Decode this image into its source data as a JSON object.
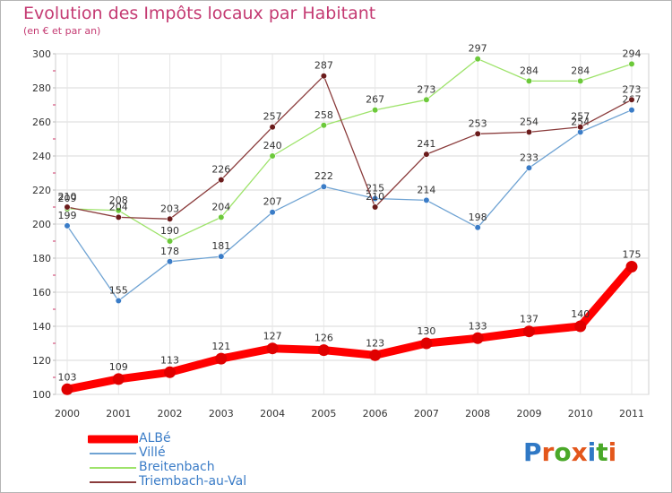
{
  "header": {
    "title": "Evolution des Impôts locaux par Habitant",
    "subtitle": "(en € et par an)"
  },
  "brand": {
    "letters": [
      "P",
      "r",
      "o",
      "x",
      "i",
      "t",
      "i"
    ],
    "colors": [
      "#2f78c5",
      "#e3571c",
      "#4aa829",
      "#e3571c",
      "#2f78c5",
      "#4aa829",
      "#e3571c"
    ]
  },
  "chart_data": {
    "type": "line",
    "title": "Evolution des Impôts locaux par Habitant",
    "subtitle": "(en € et par an)",
    "xlabel": "",
    "ylabel": "",
    "x": [
      "2000",
      "2001",
      "2002",
      "2003",
      "2004",
      "2005",
      "2006",
      "2007",
      "2008",
      "2009",
      "2010",
      "2011"
    ],
    "ylim": [
      100,
      300
    ],
    "yticks": [
      "100",
      "120",
      "140",
      "160",
      "180",
      "200",
      "220",
      "240",
      "260",
      "280",
      "300"
    ],
    "grid": true,
    "legend_position": "bottom-left",
    "series": [
      {
        "name": "ALBé",
        "color": "#ff0000",
        "marker_color": "#e00000",
        "values": [
          103,
          109,
          113,
          121,
          127,
          126,
          123,
          130,
          133,
          137,
          140,
          175
        ],
        "labels": [
          "103",
          "109",
          "113",
          "121",
          "127",
          "126",
          "123",
          "130",
          "133",
          "137",
          "140",
          "175"
        ]
      },
      {
        "name": "Villé",
        "color": "#6fa3d3",
        "marker_color": "#3a7cc7",
        "values": [
          199,
          155,
          178,
          181,
          207,
          222,
          215,
          214,
          198,
          233,
          254,
          267
        ],
        "labels": [
          "199",
          "155",
          "178",
          "181",
          "207",
          "222",
          "215",
          "214",
          "198",
          "233",
          "254",
          "267"
        ]
      },
      {
        "name": "Breitenbach",
        "color": "#9ee36b",
        "marker_color": "#6cc93a",
        "values": [
          209,
          208,
          190,
          204,
          240,
          258,
          267,
          273,
          297,
          284,
          284,
          294
        ],
        "labels": [
          "209",
          "208",
          "190",
          "204",
          "240",
          "258",
          "267",
          "273",
          "297",
          "284",
          "284",
          "294"
        ]
      },
      {
        "name": "Triembach-au-Val",
        "color": "#8a3b3b",
        "marker_color": "#6b1c1c",
        "values": [
          210,
          204,
          203,
          226,
          257,
          287,
          210,
          241,
          253,
          254,
          257,
          273
        ],
        "labels": [
          "210",
          "204",
          "203",
          "226",
          "257",
          "287",
          "210",
          "241",
          "253",
          "254",
          "257",
          "273"
        ]
      }
    ]
  }
}
